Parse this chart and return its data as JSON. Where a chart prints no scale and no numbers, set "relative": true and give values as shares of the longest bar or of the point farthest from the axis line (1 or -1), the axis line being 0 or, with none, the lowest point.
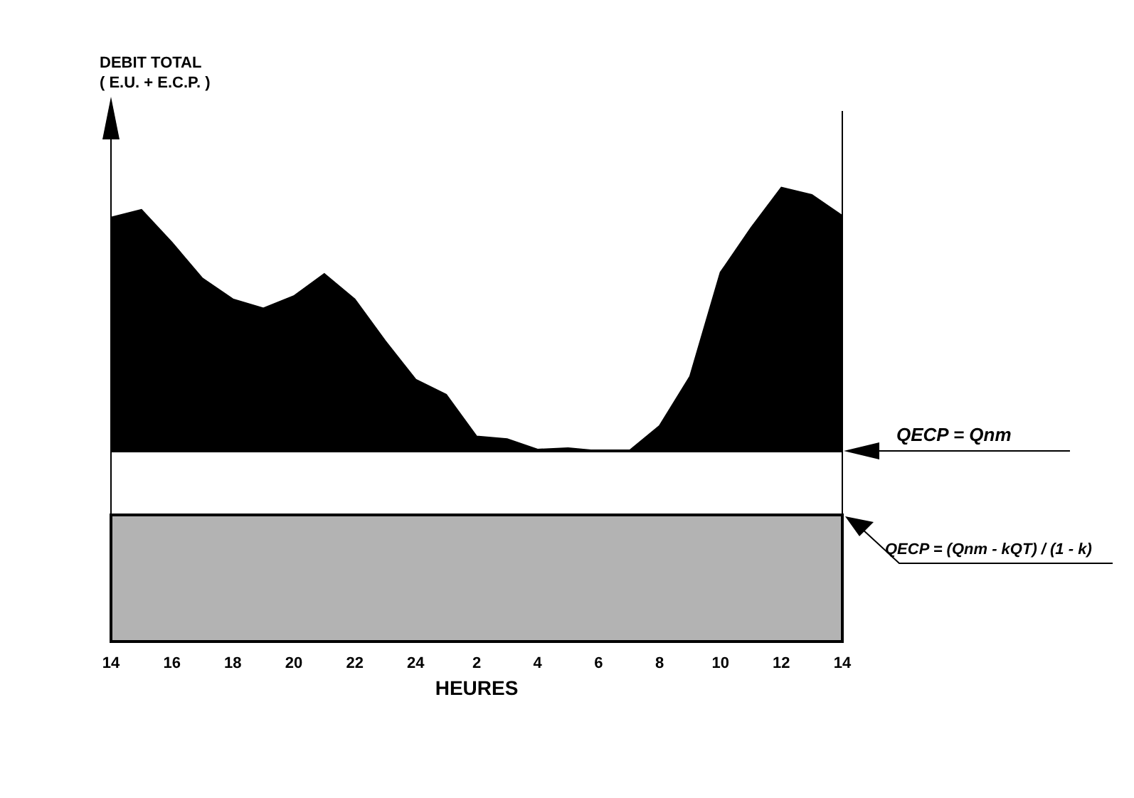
{
  "chart_data": {
    "type": "area",
    "relative": true,
    "xlabel": "HEURES",
    "annotations": [
      "DEBIT TOTAL\n( E.U. + E.C.P. )"
    ],
    "categories": [
      "14",
      null,
      "16",
      null,
      "18",
      null,
      "20",
      null,
      "22",
      null,
      "24",
      null,
      "2",
      null,
      "4",
      null,
      "6",
      null,
      "8",
      null,
      "10",
      null,
      "12",
      null,
      "14"
    ],
    "series": [
      {
        "color": "#000000",
        "values": [
          0.934,
          0.951,
          0.879,
          0.8,
          0.754,
          0.734,
          0.761,
          0.81,
          0.754,
          0.662,
          0.577,
          0.544,
          0.452,
          0.446,
          0.423,
          0.426,
          0.42,
          0.42,
          0.475,
          0.584,
          0.813,
          0.911,
          1,
          0.984,
          0.938
        ]
      }
    ],
    "ref_lines": [
      {
        "axis": "y",
        "value": 0.42,
        "label": "QECP = Qnm",
        "color": "#000000"
      }
    ],
    "bands": [
      {
        "axis": "y",
        "from": 0,
        "to": 0.279,
        "label": "QECP = (Qnm - kQT) / (1 - k)",
        "color": "#b3b3b3"
      }
    ],
    "grid": false,
    "legend": false
  }
}
